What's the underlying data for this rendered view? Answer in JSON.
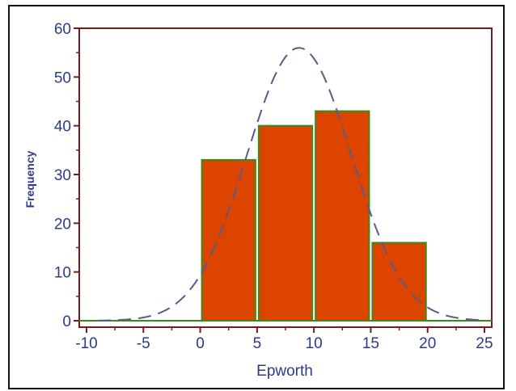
{
  "chart_data": {
    "type": "bar",
    "xlabel": "Epworth",
    "ylabel": "Frequency",
    "xlim": [
      -11,
      26
    ],
    "ylim": [
      0,
      60
    ],
    "x_ticks": [
      -10,
      -5,
      0,
      5,
      10,
      15,
      20,
      25
    ],
    "y_ticks": [
      0,
      10,
      20,
      30,
      40,
      50,
      60
    ],
    "bins": [
      {
        "start": 0,
        "end": 5,
        "value": 33
      },
      {
        "start": 5,
        "end": 10,
        "value": 40
      },
      {
        "start": 10,
        "end": 15,
        "value": 43
      },
      {
        "start": 15,
        "end": 20,
        "value": 16
      }
    ],
    "normal_curve": {
      "mean": 8.7,
      "sd": 4.6,
      "peak": 56,
      "style": "dashed"
    },
    "grid": false,
    "colors": {
      "bar_fill": "#dd4400",
      "bar_stroke": "#3a8a1a",
      "curve": "#5a5a8a",
      "axis": "#7a1a1a",
      "baseline": "#3a8a1a",
      "text": "#2e3a86"
    }
  }
}
